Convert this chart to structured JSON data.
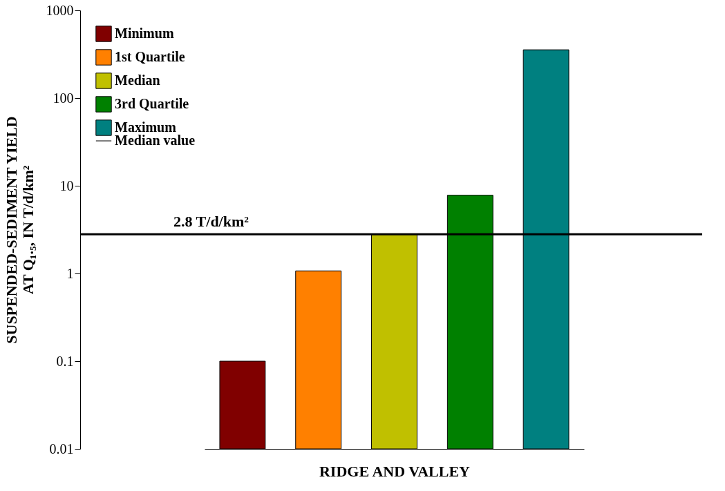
{
  "chart_data": {
    "type": "bar",
    "xlabel": "RIDGE AND VALLEY",
    "ylabel": "SUSPENDED-SEDIMENT YIELD\nAT Q₁.₅, IN T/d/km²",
    "categories": [
      null
    ],
    "series": [
      {
        "name": "Minimum",
        "color": "#800000",
        "values": [
          0.1
        ]
      },
      {
        "name": "1st Quartile",
        "color": "#ff8000",
        "values": [
          1.07
        ]
      },
      {
        "name": "Median",
        "color": "#c0c000",
        "values": [
          2.8
        ]
      },
      {
        "name": "3rd Quartile",
        "color": "#008000",
        "values": [
          7.8
        ]
      },
      {
        "name": "Maximum",
        "color": "#008080",
        "values": [
          355
        ]
      }
    ],
    "log": "y",
    "ylim": [
      0.01,
      1000
    ],
    "yticks": [
      0.01,
      0.1,
      1,
      10,
      100,
      1000
    ],
    "ref_lines": [
      {
        "axis": "y",
        "value": 2.8,
        "label": "Median value",
        "color": "#000000",
        "line_style": "solid"
      }
    ],
    "annotations": [
      {
        "text": "2.8 T/d/km²",
        "y": 2.8
      }
    ],
    "legend": "top left",
    "grid": false
  }
}
